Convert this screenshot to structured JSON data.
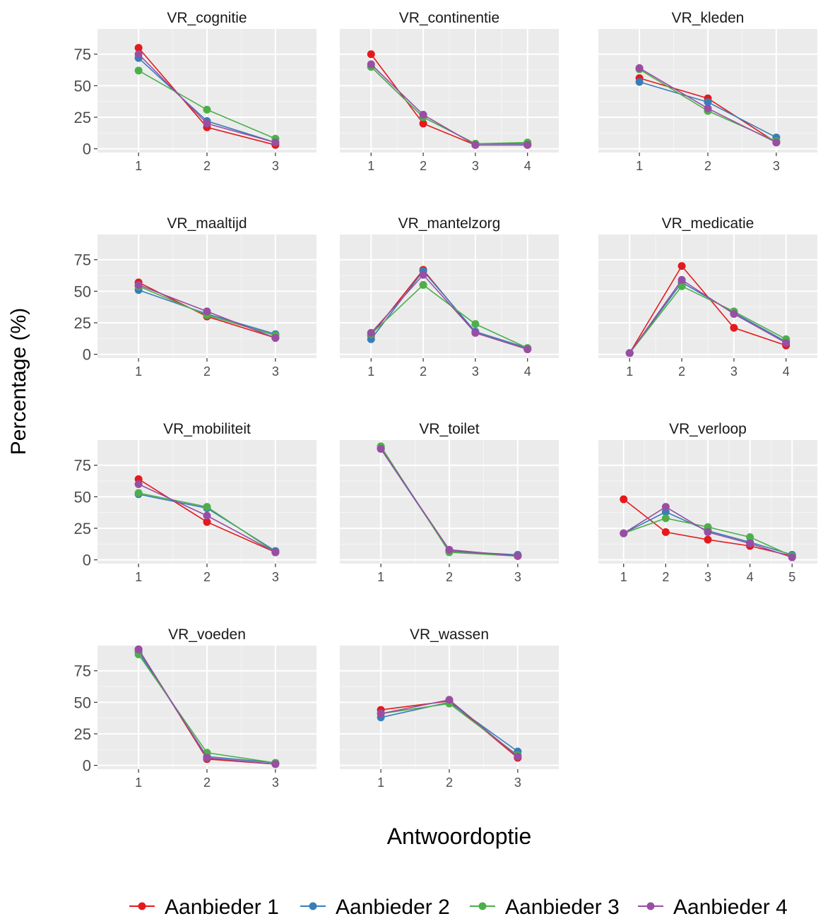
{
  "figure": {
    "ylabel": "Percentage (%)",
    "xlabel": "Antwoordoptie",
    "y_ticks": [
      0,
      25,
      50,
      75
    ]
  },
  "legend": {
    "position": "bottom",
    "items": [
      {
        "label": "Aanbieder 1",
        "color": "#e41a1c"
      },
      {
        "label": "Aanbieder 2",
        "color": "#377eb8"
      },
      {
        "label": "Aanbieder 3",
        "color": "#4daf4a"
      },
      {
        "label": "Aanbieder 4",
        "color": "#984ea3"
      }
    ]
  },
  "chart_data": [
    {
      "type": "line",
      "title": "VR_cognitie",
      "x": [
        1,
        2,
        3
      ],
      "ylim": [
        -3,
        95
      ],
      "grid": true,
      "series": [
        {
          "name": "Aanbieder 1",
          "values": [
            80,
            17,
            3
          ]
        },
        {
          "name": "Aanbieder 2",
          "values": [
            72,
            22,
            5
          ]
        },
        {
          "name": "Aanbieder 3",
          "values": [
            62,
            31,
            8
          ]
        },
        {
          "name": "Aanbieder 4",
          "values": [
            75,
            20,
            5
          ]
        }
      ]
    },
    {
      "type": "line",
      "title": "VR_continentie",
      "x": [
        1,
        2,
        3,
        4
      ],
      "ylim": [
        -3,
        95
      ],
      "grid": true,
      "series": [
        {
          "name": "Aanbieder 1",
          "values": [
            75,
            20,
            3,
            3
          ]
        },
        {
          "name": "Aanbieder 2",
          "values": [
            65,
            25,
            4,
            4
          ]
        },
        {
          "name": "Aanbieder 3",
          "values": [
            65,
            25,
            4,
            5
          ]
        },
        {
          "name": "Aanbieder 4",
          "values": [
            67,
            27,
            3,
            3
          ]
        }
      ]
    },
    {
      "type": "line",
      "title": "VR_kleden",
      "x": [
        1,
        2,
        3
      ],
      "ylim": [
        -3,
        95
      ],
      "grid": true,
      "series": [
        {
          "name": "Aanbieder 1",
          "values": [
            56,
            40,
            5
          ]
        },
        {
          "name": "Aanbieder 2",
          "values": [
            53,
            37,
            9
          ]
        },
        {
          "name": "Aanbieder 3",
          "values": [
            63,
            30,
            6
          ]
        },
        {
          "name": "Aanbieder 4",
          "values": [
            64,
            32,
            5
          ]
        }
      ]
    },
    {
      "type": "line",
      "title": "VR_maaltijd",
      "x": [
        1,
        2,
        3
      ],
      "ylim": [
        -3,
        95
      ],
      "grid": true,
      "series": [
        {
          "name": "Aanbieder 1",
          "values": [
            57,
            30,
            13
          ]
        },
        {
          "name": "Aanbieder 2",
          "values": [
            51,
            32,
            16
          ]
        },
        {
          "name": "Aanbieder 3",
          "values": [
            54,
            31,
            15
          ]
        },
        {
          "name": "Aanbieder 4",
          "values": [
            55,
            34,
            13
          ]
        }
      ]
    },
    {
      "type": "line",
      "title": "VR_mantelzorg",
      "x": [
        1,
        2,
        3,
        4
      ],
      "ylim": [
        -3,
        95
      ],
      "grid": true,
      "series": [
        {
          "name": "Aanbieder 1",
          "values": [
            15,
            67,
            17,
            4
          ]
        },
        {
          "name": "Aanbieder 2",
          "values": [
            12,
            66,
            18,
            5
          ]
        },
        {
          "name": "Aanbieder 3",
          "values": [
            16,
            55,
            24,
            5
          ]
        },
        {
          "name": "Aanbieder 4",
          "values": [
            17,
            63,
            17,
            4
          ]
        }
      ]
    },
    {
      "type": "line",
      "title": "VR_medicatie",
      "x": [
        1,
        2,
        3,
        4
      ],
      "ylim": [
        -3,
        95
      ],
      "grid": true,
      "series": [
        {
          "name": "Aanbieder 1",
          "values": [
            1,
            70,
            21,
            7
          ]
        },
        {
          "name": "Aanbieder 2",
          "values": [
            1,
            57,
            33,
            10
          ]
        },
        {
          "name": "Aanbieder 3",
          "values": [
            1,
            54,
            34,
            12
          ]
        },
        {
          "name": "Aanbieder 4",
          "values": [
            1,
            59,
            32,
            9
          ]
        }
      ]
    },
    {
      "type": "line",
      "title": "VR_mobiliteit",
      "x": [
        1,
        2,
        3
      ],
      "ylim": [
        -3,
        95
      ],
      "grid": true,
      "series": [
        {
          "name": "Aanbieder 1",
          "values": [
            64,
            30,
            6
          ]
        },
        {
          "name": "Aanbieder 2",
          "values": [
            52,
            41,
            7
          ]
        },
        {
          "name": "Aanbieder 3",
          "values": [
            53,
            42,
            6
          ]
        },
        {
          "name": "Aanbieder 4",
          "values": [
            60,
            35,
            6
          ]
        }
      ]
    },
    {
      "type": "line",
      "title": "VR_toilet",
      "x": [
        1,
        2,
        3
      ],
      "ylim": [
        -3,
        95
      ],
      "grid": true,
      "series": [
        {
          "name": "Aanbieder 1",
          "values": [
            89,
            7,
            3
          ]
        },
        {
          "name": "Aanbieder 2",
          "values": [
            88,
            7,
            4
          ]
        },
        {
          "name": "Aanbieder 3",
          "values": [
            90,
            6,
            3
          ]
        },
        {
          "name": "Aanbieder 4",
          "values": [
            88,
            8,
            3
          ]
        }
      ]
    },
    {
      "type": "line",
      "title": "VR_verloop",
      "x": [
        1,
        2,
        3,
        4,
        5
      ],
      "ylim": [
        -3,
        95
      ],
      "grid": true,
      "series": [
        {
          "name": "Aanbieder 1",
          "values": [
            48,
            22,
            16,
            11,
            3
          ]
        },
        {
          "name": "Aanbieder 2",
          "values": [
            21,
            38,
            23,
            14,
            4
          ]
        },
        {
          "name": "Aanbieder 3",
          "values": [
            21,
            33,
            26,
            18,
            3
          ]
        },
        {
          "name": "Aanbieder 4",
          "values": [
            21,
            42,
            22,
            13,
            2
          ]
        }
      ]
    },
    {
      "type": "line",
      "title": "VR_voeden",
      "x": [
        1,
        2,
        3
      ],
      "ylim": [
        -3,
        95
      ],
      "grid": true,
      "series": [
        {
          "name": "Aanbieder 1",
          "values": [
            92,
            5,
            1
          ]
        },
        {
          "name": "Aanbieder 2",
          "values": [
            90,
            7,
            2
          ]
        },
        {
          "name": "Aanbieder 3",
          "values": [
            88,
            10,
            2
          ]
        },
        {
          "name": "Aanbieder 4",
          "values": [
            92,
            6,
            1
          ]
        }
      ]
    },
    {
      "type": "line",
      "title": "VR_wassen",
      "x": [
        1,
        2,
        3
      ],
      "ylim": [
        -3,
        95
      ],
      "grid": true,
      "series": [
        {
          "name": "Aanbieder 1",
          "values": [
            44,
            51,
            6
          ]
        },
        {
          "name": "Aanbieder 2",
          "values": [
            38,
            50,
            11
          ]
        },
        {
          "name": "Aanbieder 3",
          "values": [
            41,
            49,
            8
          ]
        },
        {
          "name": "Aanbieder 4",
          "values": [
            41,
            52,
            7
          ]
        }
      ]
    }
  ]
}
